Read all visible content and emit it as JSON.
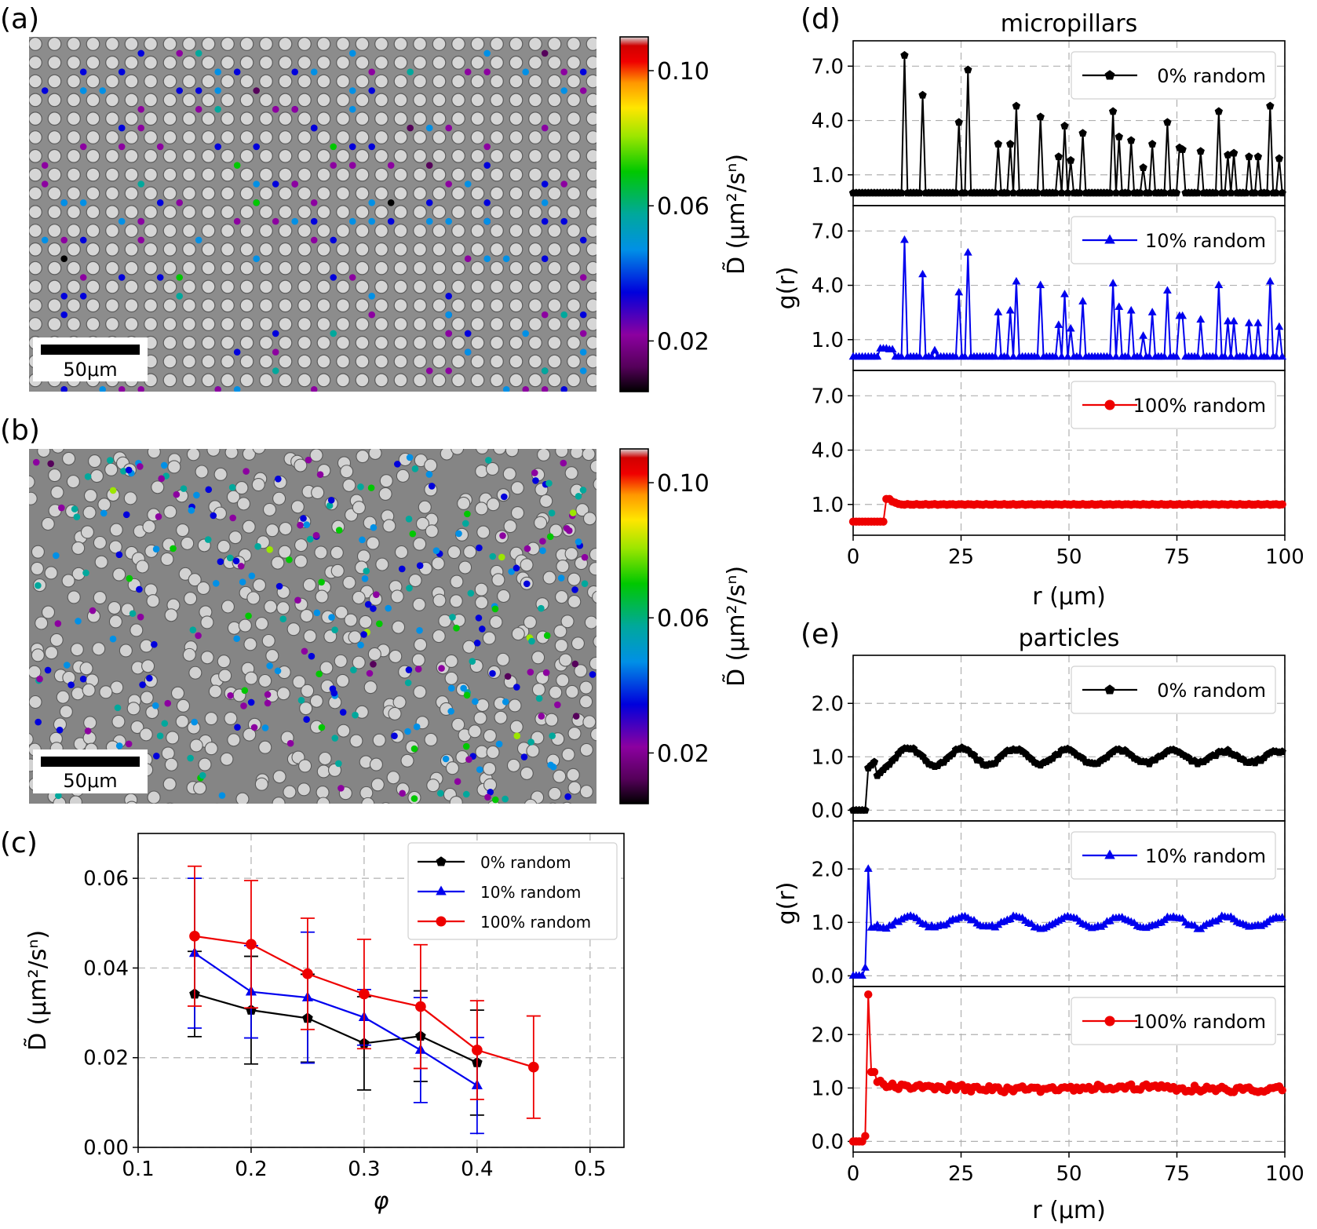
{
  "figure": {
    "panel_labels": [
      "(a)",
      "(b)",
      "(c)",
      "(d)",
      "(e)"
    ],
    "scalebar_label": "50μm",
    "colorbar": {
      "ticks": [
        "0.10",
        "0.06",
        "0.02"
      ],
      "tick_values": [
        0.1,
        0.06,
        0.02
      ],
      "range": [
        0.005,
        0.11
      ],
      "label": "D̃ (μm²/sⁿ)"
    },
    "colors": {
      "black_series": "#000000",
      "blue_series": "#0000ee",
      "red_series": "#ee0000",
      "micrograph_bg": "#8c8c8c"
    }
  },
  "chart_data": [
    {
      "id": "c",
      "type": "line",
      "title": "",
      "xlabel": "φ",
      "ylabel": "D̃ (μm²/sⁿ)",
      "xlim": [
        0.1,
        0.53
      ],
      "ylim": [
        0.0,
        0.07
      ],
      "xticks": [
        "0.1",
        "0.2",
        "0.3",
        "0.4",
        "0.5"
      ],
      "yticks": [
        "0.00",
        "0.02",
        "0.04",
        "0.06"
      ],
      "legend_position": "top-right",
      "series": [
        {
          "name": "0% random",
          "marker": "pentagon",
          "color": "#000000",
          "x": [
            0.15,
            0.2,
            0.25,
            0.3,
            0.35,
            0.4
          ],
          "y": [
            0.0342,
            0.0306,
            0.0288,
            0.0232,
            0.0248,
            0.0189
          ],
          "err": [
            0.0095,
            0.012,
            0.0098,
            0.0104,
            0.0101,
            0.0117
          ]
        },
        {
          "name": "10% random",
          "marker": "triangle",
          "color": "#0000ee",
          "x": [
            0.15,
            0.2,
            0.25,
            0.3,
            0.35,
            0.4
          ],
          "y": [
            0.0433,
            0.0347,
            0.0334,
            0.029,
            0.0217,
            0.0138
          ],
          "err": [
            0.0167,
            0.0103,
            0.0146,
            0.0062,
            0.0117,
            0.0107
          ]
        },
        {
          "name": "100% random",
          "marker": "circle",
          "color": "#ee0000",
          "x": [
            0.15,
            0.2,
            0.25,
            0.3,
            0.35,
            0.4,
            0.45
          ],
          "y": [
            0.0471,
            0.0453,
            0.0387,
            0.0342,
            0.0314,
            0.0217,
            0.0179
          ],
          "err": [
            0.0156,
            0.0142,
            0.0124,
            0.0122,
            0.0138,
            0.011,
            0.0114
          ]
        }
      ]
    },
    {
      "id": "d",
      "type": "line",
      "title": "micropillars",
      "xlabel": "r (μm)",
      "ylabel": "g(r)",
      "xlim": [
        0,
        100
      ],
      "ylim": [
        -0.7,
        8.4
      ],
      "xticks": [
        "0",
        "25",
        "50",
        "75",
        "100"
      ],
      "yticks": [
        "1.0",
        "4.0",
        "7.0"
      ],
      "legend_position": "top-right",
      "series": [
        {
          "name": "0% random",
          "marker": "pentagon",
          "color": "#000000",
          "peaks": [
            [
              12.2,
              7.6
            ],
            [
              16.4,
              5.4
            ],
            [
              24.4,
              3.9
            ],
            [
              26.5,
              6.8
            ],
            [
              33.6,
              2.7
            ],
            [
              36.2,
              2.7
            ],
            [
              37.6,
              4.8
            ],
            [
              43.5,
              4.2
            ],
            [
              47.5,
              2.0
            ],
            [
              49.2,
              3.7
            ],
            [
              50.5,
              1.8
            ],
            [
              53.5,
              3.3
            ],
            [
              60.3,
              4.5
            ],
            [
              61.5,
              3.1
            ],
            [
              64.5,
              2.9
            ],
            [
              67.2,
              1.4
            ],
            [
              69.3,
              2.7
            ],
            [
              72.5,
              3.9
            ],
            [
              75.3,
              2.5
            ],
            [
              76.5,
              2.4
            ],
            [
              80.3,
              2.3
            ],
            [
              84.5,
              4.5
            ],
            [
              86.7,
              2.1
            ],
            [
              88.0,
              2.2
            ],
            [
              91.5,
              2.0
            ],
            [
              93.5,
              2.0
            ],
            [
              96.6,
              4.8
            ],
            [
              98.7,
              1.9
            ]
          ]
        },
        {
          "name": "10% random",
          "marker": "triangle",
          "color": "#0000ee",
          "peaks": [
            [
              6.0,
              0.5
            ],
            [
              6.8,
              0.5
            ],
            [
              7.5,
              0.5
            ],
            [
              8.3,
              0.45
            ],
            [
              9.0,
              0.45
            ],
            [
              12.2,
              6.5
            ],
            [
              16.4,
              4.6
            ],
            [
              19.0,
              0.4
            ],
            [
              24.4,
              3.6
            ],
            [
              26.5,
              5.8
            ],
            [
              33.6,
              2.5
            ],
            [
              36.2,
              2.6
            ],
            [
              37.6,
              4.2
            ],
            [
              43.5,
              4.0
            ],
            [
              47.5,
              1.8
            ],
            [
              49.2,
              3.5
            ],
            [
              50.5,
              1.6
            ],
            [
              53.5,
              3.1
            ],
            [
              60.3,
              4.1
            ],
            [
              61.5,
              2.8
            ],
            [
              64.5,
              2.6
            ],
            [
              67.2,
              1.2
            ],
            [
              69.3,
              2.5
            ],
            [
              72.5,
              3.7
            ],
            [
              75.3,
              2.3
            ],
            [
              76.5,
              2.3
            ],
            [
              80.3,
              2.1
            ],
            [
              84.5,
              4.0
            ],
            [
              86.7,
              2.0
            ],
            [
              88.0,
              2.0
            ],
            [
              91.5,
              1.9
            ],
            [
              93.5,
              1.9
            ],
            [
              96.6,
              4.2
            ],
            [
              98.7,
              1.7
            ]
          ]
        },
        {
          "name": "100% random",
          "marker": "circle",
          "color": "#ee0000",
          "profile": "zero-then-flat",
          "low": 0.05,
          "jump_at": 7.5,
          "peak": 1.3,
          "plateau": 1.0
        }
      ]
    },
    {
      "id": "e",
      "type": "line",
      "title": "particles",
      "xlabel": "r (μm)",
      "ylabel": "g(r)",
      "xlim": [
        0,
        100
      ],
      "ylim": [
        -0.2,
        2.9
      ],
      "xticks": [
        "0",
        "25",
        "50",
        "75",
        "100"
      ],
      "yticks": [
        "0.0",
        "1.0",
        "2.0"
      ],
      "legend_position": "top-right",
      "series": [
        {
          "name": "0% random",
          "marker": "pentagon",
          "color": "#000000",
          "profile": "oscillating",
          "onset": 3.0,
          "period": 12.2,
          "amp": 0.18,
          "decay": 0.006
        },
        {
          "name": "10% random",
          "marker": "triangle",
          "color": "#0000ee",
          "profile": "spike-then-oscillating",
          "spike_at": 3.3,
          "spike": 2.0,
          "amp": 0.1
        },
        {
          "name": "100% random",
          "marker": "circle",
          "color": "#ee0000",
          "profile": "spike-then-noise",
          "spike_at": 3.3,
          "spike": 2.75,
          "amp": 0.06
        }
      ]
    }
  ]
}
